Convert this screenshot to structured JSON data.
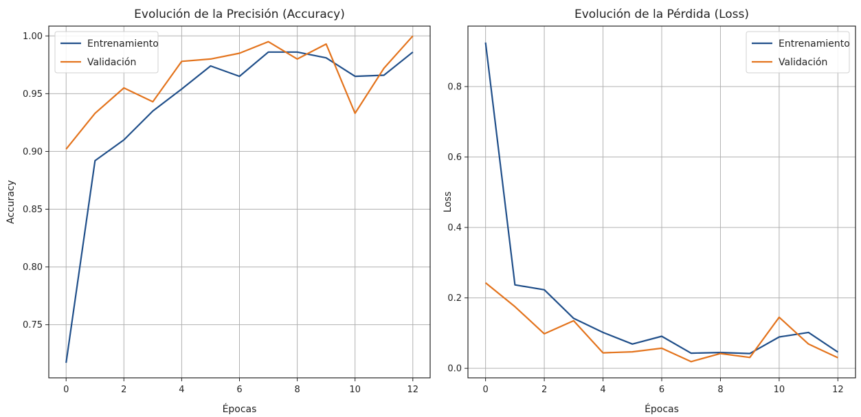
{
  "chart_data": [
    {
      "type": "line",
      "title": "Evolución de la Precisión (Accuracy)",
      "xlabel": "Épocas",
      "ylabel": "Accuracy",
      "x": [
        0,
        1,
        2,
        3,
        4,
        5,
        6,
        7,
        8,
        9,
        10,
        11,
        12
      ],
      "xlim": [
        -0.6,
        12.6
      ],
      "ylim": [
        0.704,
        1.0085
      ],
      "xticks": [
        0,
        2,
        4,
        6,
        8,
        10,
        12
      ],
      "yticks": [
        0.75,
        0.8,
        0.85,
        0.9,
        0.95,
        1.0
      ],
      "ytick_labels": [
        "0.75",
        "0.80",
        "0.85",
        "0.90",
        "0.95",
        "1.00"
      ],
      "grid": true,
      "legend_position": "upper-left",
      "series": [
        {
          "name": "Entrenamiento",
          "color": "#1f4e89",
          "values": [
            0.717,
            0.892,
            0.91,
            0.935,
            0.954,
            0.974,
            0.965,
            0.986,
            0.986,
            0.981,
            0.965,
            0.966,
            0.986
          ]
        },
        {
          "name": "Validación",
          "color": "#e3731c",
          "values": [
            0.902,
            0.933,
            0.955,
            0.943,
            0.978,
            0.98,
            0.985,
            0.995,
            0.98,
            0.993,
            0.933,
            0.972,
            1.0
          ]
        }
      ]
    },
    {
      "type": "line",
      "title": "Evolución de la Pérdida (Loss)",
      "xlabel": "Épocas",
      "ylabel": "Loss",
      "x": [
        0,
        1,
        2,
        3,
        4,
        5,
        6,
        7,
        8,
        9,
        10,
        11,
        12
      ],
      "xlim": [
        -0.6,
        12.6
      ],
      "ylim": [
        -0.027,
        0.9717
      ],
      "xticks": [
        0,
        2,
        4,
        6,
        8,
        10,
        12
      ],
      "yticks": [
        0.0,
        0.2,
        0.4,
        0.6,
        0.8
      ],
      "ytick_labels": [
        "0.0",
        "0.2",
        "0.4",
        "0.6",
        "0.8"
      ],
      "grid": true,
      "legend_position": "upper-right",
      "series": [
        {
          "name": "Entrenamiento",
          "color": "#1f4e89",
          "values": [
            0.925,
            0.237,
            0.223,
            0.142,
            0.102,
            0.069,
            0.091,
            0.043,
            0.045,
            0.042,
            0.089,
            0.102,
            0.046
          ]
        },
        {
          "name": "Validación",
          "color": "#e3731c",
          "values": [
            0.243,
            0.175,
            0.098,
            0.135,
            0.044,
            0.047,
            0.057,
            0.019,
            0.042,
            0.031,
            0.145,
            0.069,
            0.03
          ]
        }
      ]
    }
  ]
}
